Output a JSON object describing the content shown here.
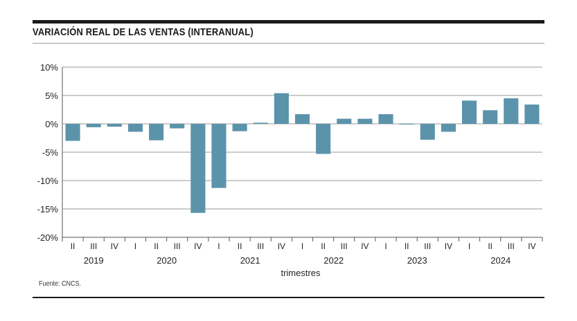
{
  "title": "VARIACIÓN REAL DE LAS VENTAS (INTERANUAL)",
  "source": "Fuente: CNCS.",
  "colors": {
    "bar": "#5b93ab",
    "grid": "#9a9a9a",
    "axis": "#555555",
    "text": "#222222"
  },
  "chart_data": {
    "type": "bar",
    "title": "VARIACIÓN REAL DE LAS VENTAS (INTERANUAL)",
    "xlabel": "trimestres",
    "ylabel": "",
    "ylim": [
      -20,
      10
    ],
    "yticks": [
      10,
      5,
      0,
      -5,
      -10,
      -15,
      -20
    ],
    "ytick_labels": [
      "10%",
      "5%",
      "0%",
      "-5%",
      "-10%",
      "-15%",
      "-20%"
    ],
    "grid": "horizontal",
    "categories": [
      "II",
      "III",
      "IV",
      "I",
      "II",
      "III",
      "IV",
      "I",
      "II",
      "III",
      "IV",
      "I",
      "II",
      "III",
      "IV",
      "I",
      "II",
      "III",
      "IV",
      "I",
      "II",
      "III",
      "IV"
    ],
    "years": [
      {
        "label": "2019",
        "start": 0,
        "end": 2
      },
      {
        "label": "2020",
        "start": 3,
        "end": 6
      },
      {
        "label": "2021",
        "start": 7,
        "end": 10
      },
      {
        "label": "2022",
        "start": 11,
        "end": 14
      },
      {
        "label": "2023",
        "start": 15,
        "end": 18
      },
      {
        "label": "2024",
        "start": 19,
        "end": 22
      }
    ],
    "values": [
      -3.0,
      -0.6,
      -0.5,
      -1.4,
      -2.9,
      -0.8,
      -15.7,
      -11.3,
      -1.3,
      0.2,
      5.4,
      1.7,
      -5.3,
      0.9,
      0.9,
      1.7,
      -0.1,
      -2.8,
      -1.4,
      4.1,
      2.4,
      4.5,
      3.4
    ]
  }
}
